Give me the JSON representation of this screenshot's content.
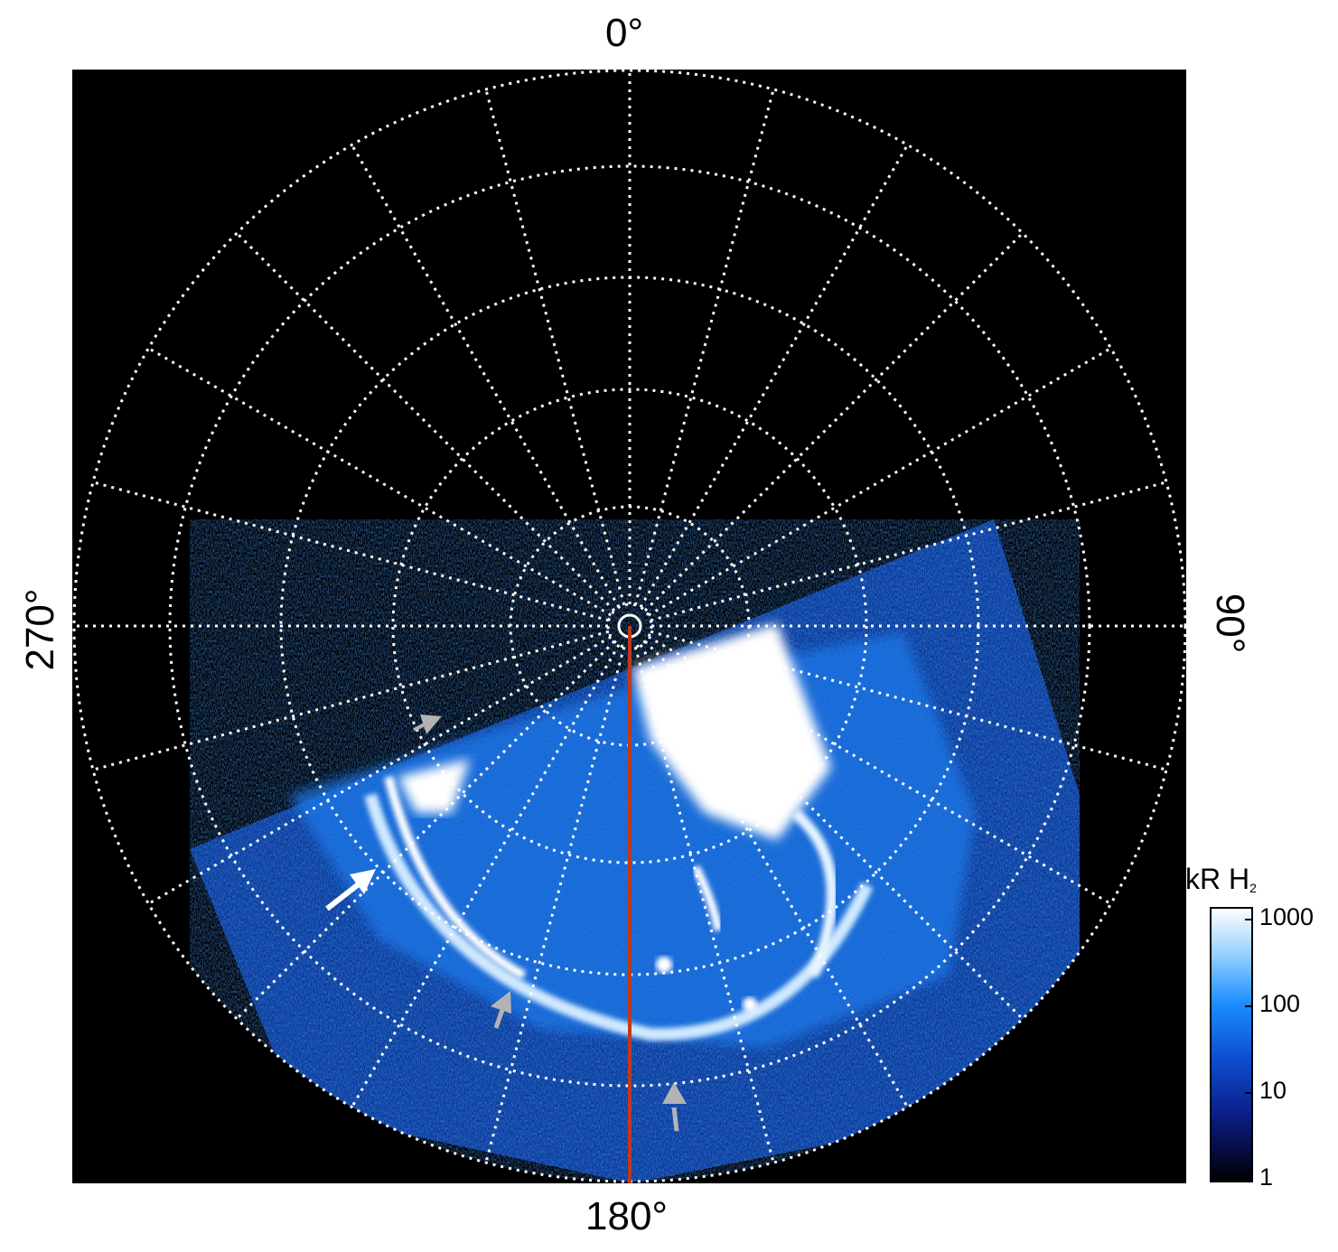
{
  "axis_labels": {
    "top": "0°",
    "right": "90°",
    "bottom": "180°",
    "left": "270°"
  },
  "colorbar": {
    "unit": "kR H",
    "subscript": "2",
    "scale": "log",
    "ticks": [
      "1000",
      "100",
      "10",
      "1"
    ],
    "colors": [
      "#ffffff",
      "#1d8dff",
      "#0a2a9a",
      "#000000"
    ]
  },
  "colors": {
    "background": "#000000",
    "grid": "#ffffff",
    "reference_line": "#c0391b",
    "arrow_primary": "#ffffff",
    "arrow_secondary": "#b3b3b3"
  },
  "arrows": {
    "white_count": 1,
    "gray_count": 3
  }
}
